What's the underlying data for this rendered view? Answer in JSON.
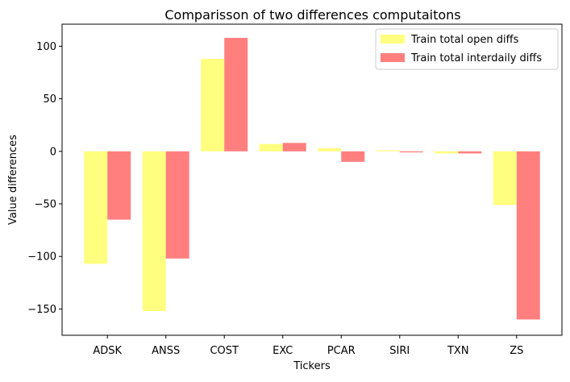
{
  "chart_data": {
    "type": "bar",
    "title": "Comparisson of two differences computaitons",
    "xlabel": "Tickers",
    "ylabel": "Value differences",
    "categories": [
      "ADSK",
      "ANSS",
      "COST",
      "EXC",
      "PCAR",
      "SIRI",
      "TXN",
      "ZS"
    ],
    "series": [
      {
        "name": "Train total open diffs",
        "color": "#ffff7f",
        "values": [
          -107,
          -152,
          88,
          7,
          3,
          1,
          -2,
          -51
        ]
      },
      {
        "name": "Train total interdaily diffs",
        "color": "#ff7f7f",
        "values": [
          -65,
          -102,
          108,
          8,
          -10,
          -1,
          -2,
          -160
        ]
      }
    ],
    "ylim": [
      -175,
      121
    ],
    "yticks": [
      -150,
      -100,
      -50,
      0,
      50,
      100
    ],
    "ytick_labels": [
      "−150",
      "−100",
      "−50",
      "0",
      "50",
      "100"
    ],
    "grid": false,
    "legend_position": "top-right"
  }
}
